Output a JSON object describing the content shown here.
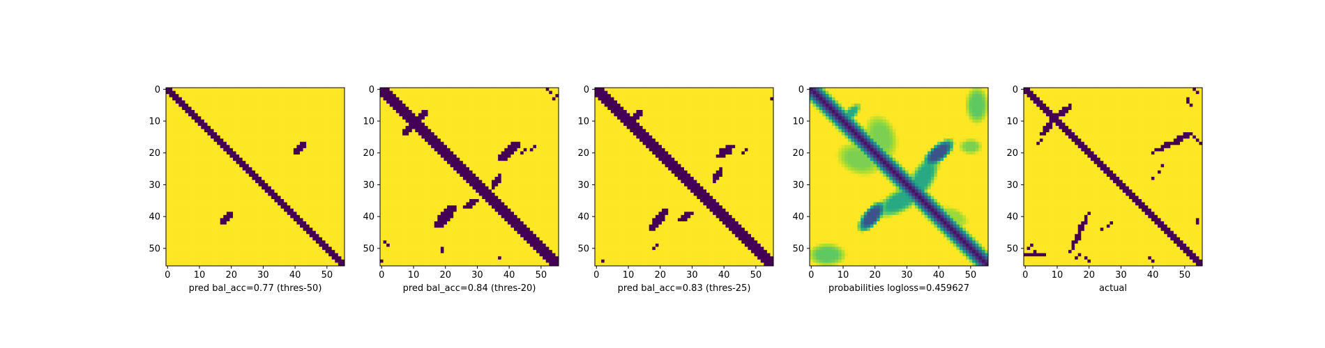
{
  "chart_data": [
    {
      "type": "heatmap",
      "panel": "pred-50",
      "xlabel": "pred bal_acc=0.77 (thres-50)",
      "ylabel": "",
      "grid_size": 56,
      "xlim": [
        -0.5,
        55.5
      ],
      "ylim": [
        55.5,
        -0.5
      ],
      "xticks": [
        0,
        10,
        20,
        30,
        40,
        50
      ],
      "yticks": [
        0,
        10,
        20,
        30,
        40,
        50
      ],
      "colormap": "viridis",
      "value_range": [
        0,
        1
      ],
      "background_value": 1,
      "diagonal": {
        "start": 0,
        "end": 55,
        "halfwidth": 1.2,
        "value": 0
      },
      "blobs": [
        {
          "cx": 41.5,
          "cy": 18.5,
          "rx": 2.2,
          "ry": 1.3,
          "angle": -45,
          "value": 0
        },
        {
          "cx": 18.5,
          "cy": 40.5,
          "rx": 2.6,
          "ry": 1.1,
          "angle": -45,
          "value": 0
        }
      ],
      "scatter": []
    },
    {
      "type": "heatmap",
      "panel": "pred-20",
      "xlabel": "pred bal_acc=0.84 (thres-20)",
      "ylabel": "",
      "grid_size": 56,
      "xlim": [
        -0.5,
        55.5
      ],
      "ylim": [
        55.5,
        -0.5
      ],
      "xticks": [
        0,
        10,
        20,
        30,
        40,
        50
      ],
      "yticks": [
        0,
        10,
        20,
        30,
        40,
        50
      ],
      "colormap": "viridis",
      "value_range": [
        0,
        1
      ],
      "background_value": 1,
      "diagonal": {
        "start": 0,
        "end": 55,
        "halfwidth": 1.8,
        "value": 0
      },
      "blobs": [
        {
          "cx": 40,
          "cy": 19.5,
          "rx": 5,
          "ry": 1.6,
          "angle": -40,
          "value": 0
        },
        {
          "cx": 20,
          "cy": 40,
          "rx": 5,
          "ry": 1.6,
          "angle": -50,
          "value": 0
        },
        {
          "cx": 12,
          "cy": 9,
          "rx": 4,
          "ry": 1.1,
          "angle": -45,
          "value": 0
        },
        {
          "cx": 9,
          "cy": 12,
          "rx": 3,
          "ry": 1,
          "angle": -45,
          "value": 0
        },
        {
          "cx": 28,
          "cy": 36,
          "rx": 3,
          "ry": 1,
          "angle": -30,
          "value": 0
        },
        {
          "cx": 36,
          "cy": 29,
          "rx": 3,
          "ry": 1,
          "angle": -60,
          "value": 0
        },
        {
          "cx": 25,
          "cy": 26,
          "rx": 2,
          "ry": 1.2,
          "angle": 45,
          "value": 0
        }
      ],
      "scatter": [
        [
          52,
          0
        ],
        [
          53,
          1
        ],
        [
          54,
          3
        ],
        [
          55,
          2
        ],
        [
          44,
          20
        ],
        [
          45,
          19
        ],
        [
          47,
          19
        ],
        [
          48,
          18
        ],
        [
          1,
          48
        ],
        [
          2,
          49
        ],
        [
          0,
          54
        ],
        [
          19,
          50
        ],
        [
          19,
          51
        ],
        [
          37,
          53
        ],
        [
          56,
          38
        ]
      ]
    },
    {
      "type": "heatmap",
      "panel": "pred-25",
      "xlabel": "pred bal_acc=0.83 (thres-25)",
      "ylabel": "",
      "grid_size": 56,
      "xlim": [
        -0.5,
        55.5
      ],
      "ylim": [
        55.5,
        -0.5
      ],
      "xticks": [
        0,
        10,
        20,
        30,
        40,
        50
      ],
      "yticks": [
        0,
        10,
        20,
        30,
        40,
        50
      ],
      "colormap": "viridis",
      "value_range": [
        0,
        1
      ],
      "background_value": 1,
      "diagonal": {
        "start": 0,
        "end": 55,
        "halfwidth": 1.6,
        "value": 0
      },
      "blobs": [
        {
          "cx": 40.5,
          "cy": 19.5,
          "rx": 3.5,
          "ry": 1.4,
          "angle": -40,
          "value": 0
        },
        {
          "cx": 19.5,
          "cy": 41,
          "rx": 4,
          "ry": 1.4,
          "angle": -50,
          "value": 0
        },
        {
          "cx": 12,
          "cy": 9,
          "rx": 3,
          "ry": 1,
          "angle": -45,
          "value": 0
        },
        {
          "cx": 28,
          "cy": 40,
          "rx": 2.5,
          "ry": 0.9,
          "angle": -30,
          "value": 0
        },
        {
          "cx": 38,
          "cy": 27,
          "rx": 2.5,
          "ry": 0.9,
          "angle": -60,
          "value": 0
        }
      ],
      "scatter": [
        [
          55,
          3
        ],
        [
          46,
          20
        ],
        [
          47,
          19
        ],
        [
          19,
          49
        ],
        [
          18,
          50
        ],
        [
          2,
          54
        ]
      ]
    },
    {
      "type": "heatmap",
      "panel": "probabilities",
      "xlabel": "probabilities logloss=0.459627",
      "ylabel": "",
      "grid_size": 56,
      "xlim": [
        -0.5,
        55.5
      ],
      "ylim": [
        55.5,
        -0.5
      ],
      "xticks": [
        0,
        10,
        20,
        30,
        40,
        50
      ],
      "yticks": [
        0,
        10,
        20,
        30,
        40,
        50
      ],
      "colormap": "viridis",
      "value_range": [
        0,
        1
      ],
      "background_value": 1,
      "diagonal": {
        "start": 0,
        "end": 55,
        "halfwidth": 3.2,
        "value": 0.05
      },
      "blobs": [
        {
          "cx": 40,
          "cy": 20,
          "rx": 5,
          "ry": 2.2,
          "angle": -40,
          "value": 0.25
        },
        {
          "cx": 19,
          "cy": 40,
          "rx": 5,
          "ry": 2.2,
          "angle": -50,
          "value": 0.25
        },
        {
          "cx": 28,
          "cy": 35,
          "rx": 7,
          "ry": 3,
          "angle": -30,
          "value": 0.6
        },
        {
          "cx": 35,
          "cy": 28,
          "rx": 7,
          "ry": 3,
          "angle": -60,
          "value": 0.6
        },
        {
          "cx": 15,
          "cy": 22,
          "rx": 6,
          "ry": 4,
          "angle": 20,
          "value": 0.8
        },
        {
          "cx": 22,
          "cy": 15,
          "rx": 6,
          "ry": 4,
          "angle": 70,
          "value": 0.8
        },
        {
          "cx": 5,
          "cy": 52,
          "rx": 5,
          "ry": 3,
          "angle": 0,
          "value": 0.75
        },
        {
          "cx": 52,
          "cy": 5,
          "rx": 3,
          "ry": 5,
          "angle": 0,
          "value": 0.75
        },
        {
          "cx": 45,
          "cy": 40,
          "rx": 4,
          "ry": 2,
          "angle": 30,
          "value": 0.85
        },
        {
          "cx": 12,
          "cy": 8,
          "rx": 4,
          "ry": 1.5,
          "angle": -45,
          "value": 0.6
        },
        {
          "cx": 50,
          "cy": 18,
          "rx": 3,
          "ry": 2,
          "angle": 0,
          "value": 0.8
        }
      ],
      "scatter": []
    },
    {
      "type": "heatmap",
      "panel": "actual",
      "xlabel": "actual",
      "ylabel": "",
      "grid_size": 56,
      "xlim": [
        -0.5,
        55.5
      ],
      "ylim": [
        55.5,
        -0.5
      ],
      "xticks": [
        0,
        10,
        20,
        30,
        40,
        50
      ],
      "yticks": [
        0,
        10,
        20,
        30,
        40,
        50
      ],
      "colormap": "viridis",
      "value_range": [
        0,
        1
      ],
      "background_value": 1,
      "diagonal": {
        "start": 0,
        "end": 55,
        "halfwidth": 1.3,
        "value": 0
      },
      "blobs": [
        {
          "cx": 46,
          "cy": 17,
          "rx": 7,
          "ry": 0.9,
          "angle": -25,
          "value": 0
        },
        {
          "cx": 17,
          "cy": 45,
          "rx": 7,
          "ry": 0.9,
          "angle": -65,
          "value": 0
        },
        {
          "cx": 12,
          "cy": 7,
          "rx": 3,
          "ry": 0.8,
          "angle": -40,
          "value": 0
        },
        {
          "cx": 7,
          "cy": 12,
          "rx": 3,
          "ry": 0.8,
          "angle": -50,
          "value": 0
        },
        {
          "cx": 3,
          "cy": 52,
          "rx": 3,
          "ry": 0.8,
          "angle": 0,
          "value": 0
        }
      ],
      "scatter": [
        [
          53,
          0
        ],
        [
          54,
          1
        ],
        [
          51,
          3
        ],
        [
          51,
          4
        ],
        [
          52,
          5
        ],
        [
          48,
          15
        ],
        [
          49,
          15
        ],
        [
          50,
          14
        ],
        [
          51,
          14
        ],
        [
          53,
          15
        ],
        [
          54,
          16
        ],
        [
          55,
          17
        ],
        [
          43,
          24
        ],
        [
          42,
          26
        ],
        [
          40,
          28
        ],
        [
          2,
          49
        ],
        [
          1,
          50
        ],
        [
          3,
          51
        ],
        [
          19,
          53
        ],
        [
          20,
          54
        ],
        [
          39,
          53
        ],
        [
          40,
          54
        ],
        [
          54,
          41
        ],
        [
          54,
          42
        ],
        [
          27,
          42
        ],
        [
          26,
          43
        ],
        [
          24,
          44
        ],
        [
          5,
          16
        ],
        [
          4,
          17
        ],
        [
          6,
          14
        ],
        [
          17,
          52
        ],
        [
          16,
          53
        ]
      ]
    }
  ]
}
